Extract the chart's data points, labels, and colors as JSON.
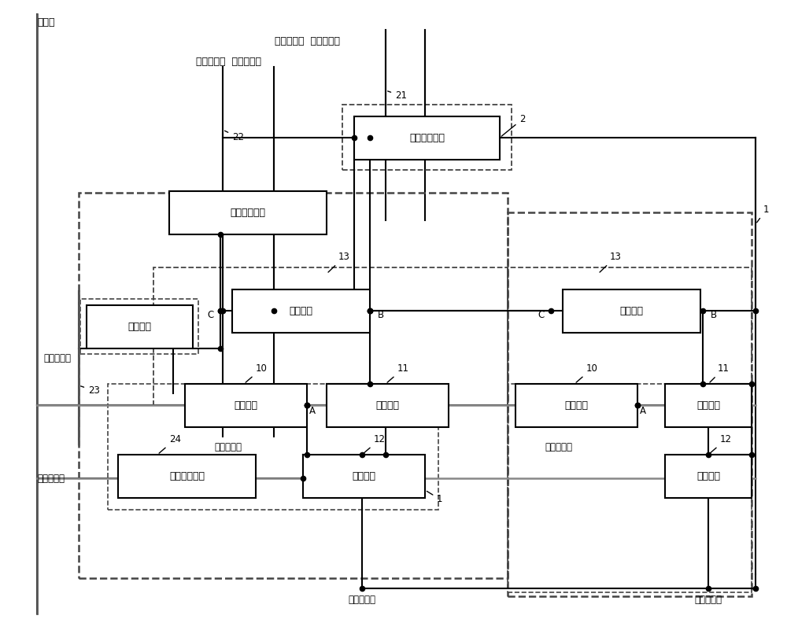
{
  "bg_color": "#ffffff",
  "lc": "#000000",
  "fig_width": 10.0,
  "fig_height": 7.92,
  "labels": {
    "data_line": "数据线",
    "ctrl1_line": "第一控制线",
    "ctrl2_line": "第二控制线",
    "ctrl3_line": "第三控制线",
    "ctrl4_line": "第四控制线",
    "pwr1_line": "第一电源线",
    "pwr2_line": "第二电源线",
    "pwr3_line": "第三电源线",
    "scan1_line": "第一扫描线",
    "scan2_line": "第二扫描线",
    "reset1": "第一重置模块",
    "reset2": "第二重置模块",
    "storage": "存储模块",
    "control": "控制模块",
    "input": "输入模块",
    "drive": "驱动模块",
    "light": "发光模块",
    "aux": "辅助放电模块"
  }
}
